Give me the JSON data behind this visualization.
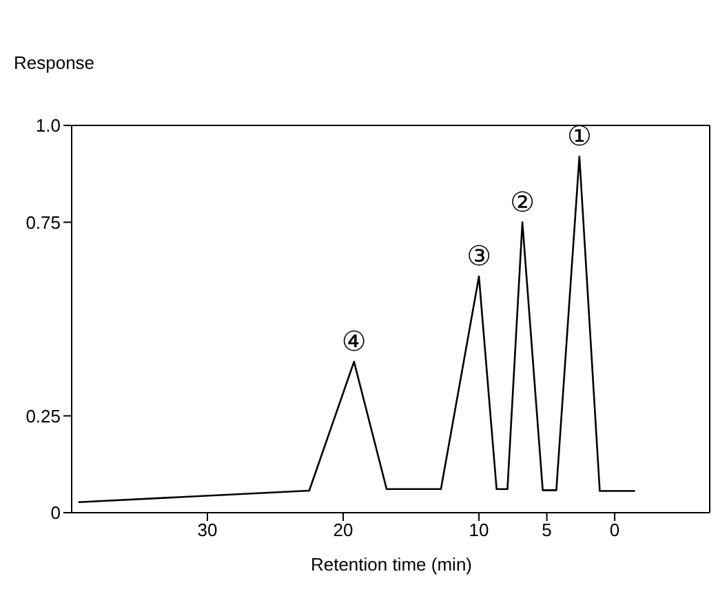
{
  "chart_data": {
    "type": "line",
    "ylabel": "Response",
    "xlabel": "Retention time (min)",
    "x": [
      39.5,
      22.5,
      19.2,
      16.8,
      12.8,
      10,
      8.7,
      7.9,
      6.8,
      5.3,
      4.3,
      2.6,
      1.1,
      -1.5
    ],
    "series": [
      {
        "color": "#000000",
        "values": [
          0.027,
          0.057,
          0.39,
          0.061,
          0.061,
          0.61,
          0.061,
          0.061,
          0.75,
          0.058,
          0.058,
          0.92,
          0.056,
          0.056
        ]
      }
    ],
    "xlim": [
      40,
      -7
    ],
    "xticks": [
      30,
      20,
      10,
      5,
      0
    ],
    "ylim": [
      0,
      1
    ],
    "yticks": [
      0,
      0.25,
      0.75,
      {
        "value": 1,
        "label": "1.0"
      }
    ],
    "annotations": [
      {
        "text": "①",
        "x": 2.6,
        "y": 0.92
      },
      {
        "text": "②",
        "x": 6.8,
        "y": 0.75
      },
      {
        "text": "③",
        "x": 10,
        "y": 0.61
      },
      {
        "text": "④",
        "x": 19.2,
        "y": 0.39
      }
    ],
    "grid": false,
    "legend": false,
    "marker": "none",
    "line_style": "solid"
  }
}
